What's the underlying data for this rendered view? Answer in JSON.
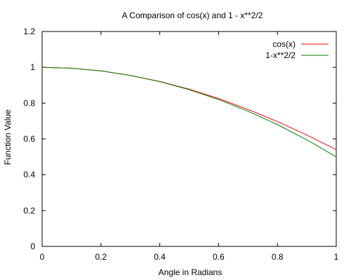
{
  "chart_data": {
    "type": "line",
    "title": "A Comparison of cos(x) and 1 - x**2/2",
    "xlabel": "Angle in Radians",
    "ylabel": "Function Value",
    "xlim": [
      0,
      1
    ],
    "ylim": [
      0,
      1.2
    ],
    "x_ticks": [
      "0",
      "0.2",
      "0.4",
      "0.6",
      "0.8",
      "1"
    ],
    "y_ticks": [
      "0",
      "0.2",
      "0.4",
      "0.6",
      "0.8",
      "1",
      "1.2"
    ],
    "grid": false,
    "legend_position": "top-right",
    "series": [
      {
        "name": "cos(x)",
        "color": "#ff0000",
        "x": [
          0,
          0.1,
          0.2,
          0.3,
          0.4,
          0.5,
          0.6,
          0.7,
          0.8,
          0.9,
          1.0
        ],
        "y": [
          1.0,
          0.995,
          0.98,
          0.955,
          0.921,
          0.878,
          0.825,
          0.765,
          0.697,
          0.622,
          0.54
        ]
      },
      {
        "name": "1-x**2/2",
        "color": "#008000",
        "x": [
          0,
          0.1,
          0.2,
          0.3,
          0.4,
          0.5,
          0.6,
          0.7,
          0.8,
          0.9,
          1.0
        ],
        "y": [
          1.0,
          0.995,
          0.98,
          0.955,
          0.92,
          0.875,
          0.82,
          0.755,
          0.68,
          0.595,
          0.5
        ]
      }
    ]
  }
}
